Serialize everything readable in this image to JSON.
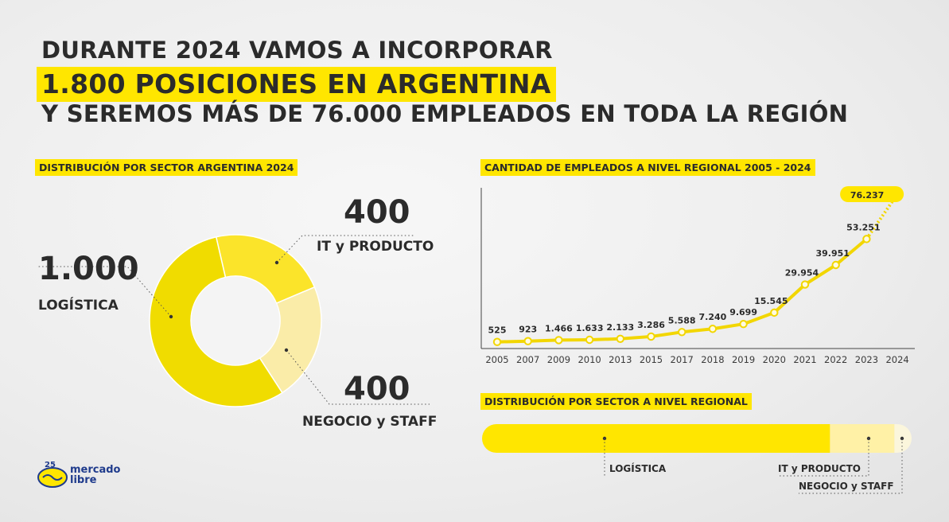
{
  "headline": {
    "line1": "DURANTE 2024 VAMOS A INCORPORAR",
    "line2": "1.800 POSICIONES EN ARGENTINA",
    "line3": "Y SEREMOS MÁS DE 76.000 EMPLEADOS EN TODA LA REGIÓN"
  },
  "colors": {
    "accent": "#ffe600",
    "donut_main": "#f0dc00",
    "donut_it": "#fbe42a",
    "donut_neg": "#faeca8",
    "text": "#2b2b2b"
  },
  "logo": {
    "text1": "mercado",
    "text2": "libre",
    "anniversary": "25 años"
  },
  "chart_data": [
    {
      "type": "pie",
      "title": "DISTRIBUCIÓN POR SECTOR ARGENTINA 2024",
      "slices": [
        {
          "label": "LOGÍSTICA",
          "value": 1000,
          "display": "1.000"
        },
        {
          "label": "IT y PRODUCTO",
          "value": 400,
          "display": "400"
        },
        {
          "label": "NEGOCIO y STAFF",
          "value": 400,
          "display": "400"
        }
      ]
    },
    {
      "type": "line",
      "title": "CANTIDAD DE EMPLEADOS A NIVEL REGIONAL 2005 - 2024",
      "x": [
        "2005",
        "2007",
        "2009",
        "2010",
        "2013",
        "2015",
        "2017",
        "2018",
        "2019",
        "2020",
        "2021",
        "2022",
        "2023",
        "2024"
      ],
      "series": [
        {
          "values": [
            525,
            923,
            1466,
            1633,
            2133,
            3286,
            5588,
            7240,
            9699,
            15545,
            29954,
            39951,
            53251,
            76237
          ],
          "labels": [
            "525",
            "923",
            "1.466",
            "1.633",
            "2.133",
            "3.286",
            "5.588",
            "7.240",
            "9.699",
            "15.545",
            "29.954",
            "39.951",
            "53.251",
            "76.237"
          ]
        }
      ],
      "ylim": [
        0,
        80000
      ]
    },
    {
      "type": "bar",
      "title": "DISTRIBUCIÓN POR SECTOR A NIVEL REGIONAL",
      "categories": [
        "LOGÍSTICA",
        "IT y PRODUCTO",
        "NEGOCIO y STAFF"
      ],
      "values": [
        81,
        15,
        4
      ]
    }
  ]
}
